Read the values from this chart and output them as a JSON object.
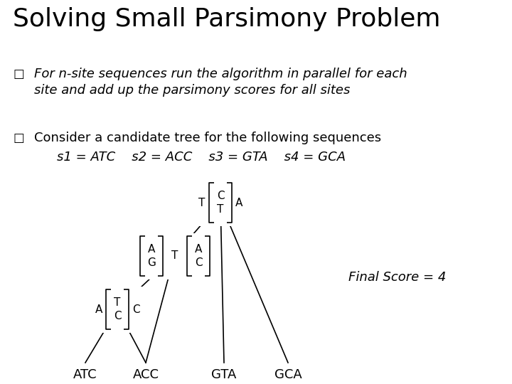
{
  "title": "Solving Small Parsimony Problem",
  "title_fontsize": 26,
  "bg_color": "#ffffff",
  "bullet1_line1": "For n-site sequences run the algorithm in parallel for each",
  "bullet1_line2": "site and add up the parsimony scores for all sites",
  "bullet2": "Consider a candidate tree for the following sequences",
  "sequences": "s1 = ATC    s2 = ACC    s3 = GTA    s4 = GCA",
  "final_score": "Final Score = 4",
  "text_fontsize": 13,
  "seq_fontsize": 13
}
